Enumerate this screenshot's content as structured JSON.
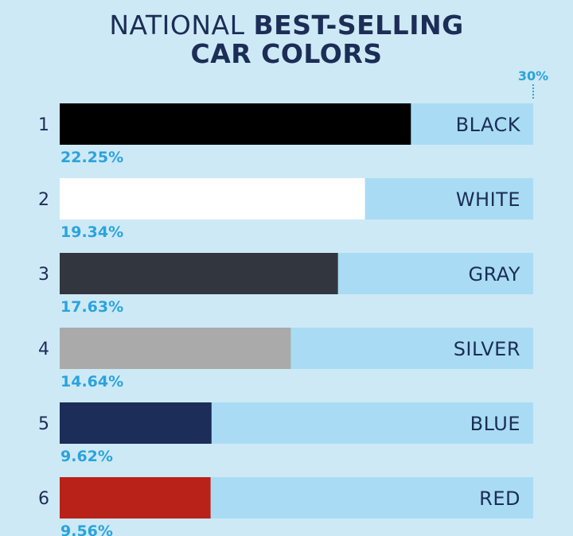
{
  "title": {
    "part1": "NATIONAL ",
    "part2": "BEST-SELLING",
    "line2": "CAR COLORS"
  },
  "chart_data": {
    "type": "bar",
    "orientation": "horizontal",
    "title": "NATIONAL BEST-SELLING CAR COLORS",
    "max_label": "30%",
    "xlim": [
      0,
      30
    ],
    "ranks": [
      "1",
      "2",
      "3",
      "4",
      "5",
      "6"
    ],
    "categories": [
      "BLACK",
      "WHITE",
      "GRAY",
      "SILVER",
      "BLUE",
      "RED"
    ],
    "values": [
      22.25,
      19.34,
      17.63,
      14.64,
      9.62,
      9.56
    ],
    "value_labels": [
      "22.25%",
      "19.34%",
      "17.63%",
      "14.64%",
      "9.62%",
      "9.56%"
    ],
    "bar_colors": [
      "#000000",
      "#ffffff",
      "#32363e",
      "#aaaaaa",
      "#1b2d58",
      "#b82218"
    ],
    "track_color": "#a9dcf4"
  }
}
